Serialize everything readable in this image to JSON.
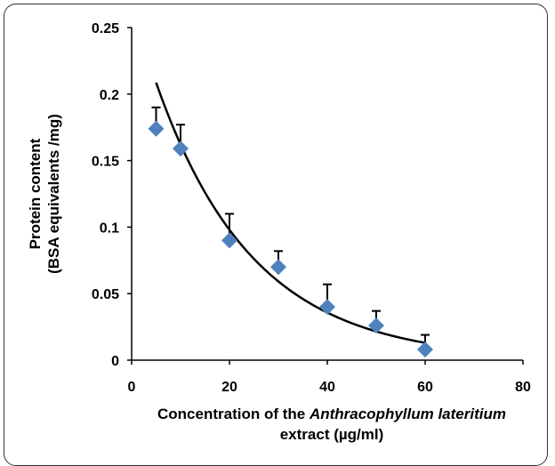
{
  "chart_data": {
    "type": "scatter",
    "title": "",
    "xlabel_parts": [
      "Concentration of the ",
      "Anthracophyllum lateritium"
    ],
    "xlabel_line2": "extract (µg/ml)",
    "ylabel_line1": "Protein content",
    "ylabel_line2": "(BSA equivalents /mg)",
    "xlim": [
      0,
      80
    ],
    "ylim": [
      0,
      0.25
    ],
    "x_ticks": [
      "0",
      "20",
      "40",
      "60",
      "80"
    ],
    "y_ticks": [
      "0",
      "0.05",
      "0.1",
      "0.15",
      "0.2",
      "0.25"
    ],
    "grid": false,
    "legend": "none",
    "marker_color": "#4F81BD",
    "series": [
      {
        "x": [
          5,
          10,
          20,
          30,
          40,
          50,
          60
        ],
        "y": [
          0.174,
          0.159,
          0.09,
          0.07,
          0.04,
          0.026,
          0.008
        ],
        "error": [
          0.016,
          0.018,
          0.02,
          0.012,
          0.017,
          0.011,
          0.011
        ]
      }
    ],
    "trendline": {
      "type": "exponential",
      "a": 0.2685,
      "b": -0.0504,
      "x_range": [
        5,
        60
      ]
    }
  }
}
